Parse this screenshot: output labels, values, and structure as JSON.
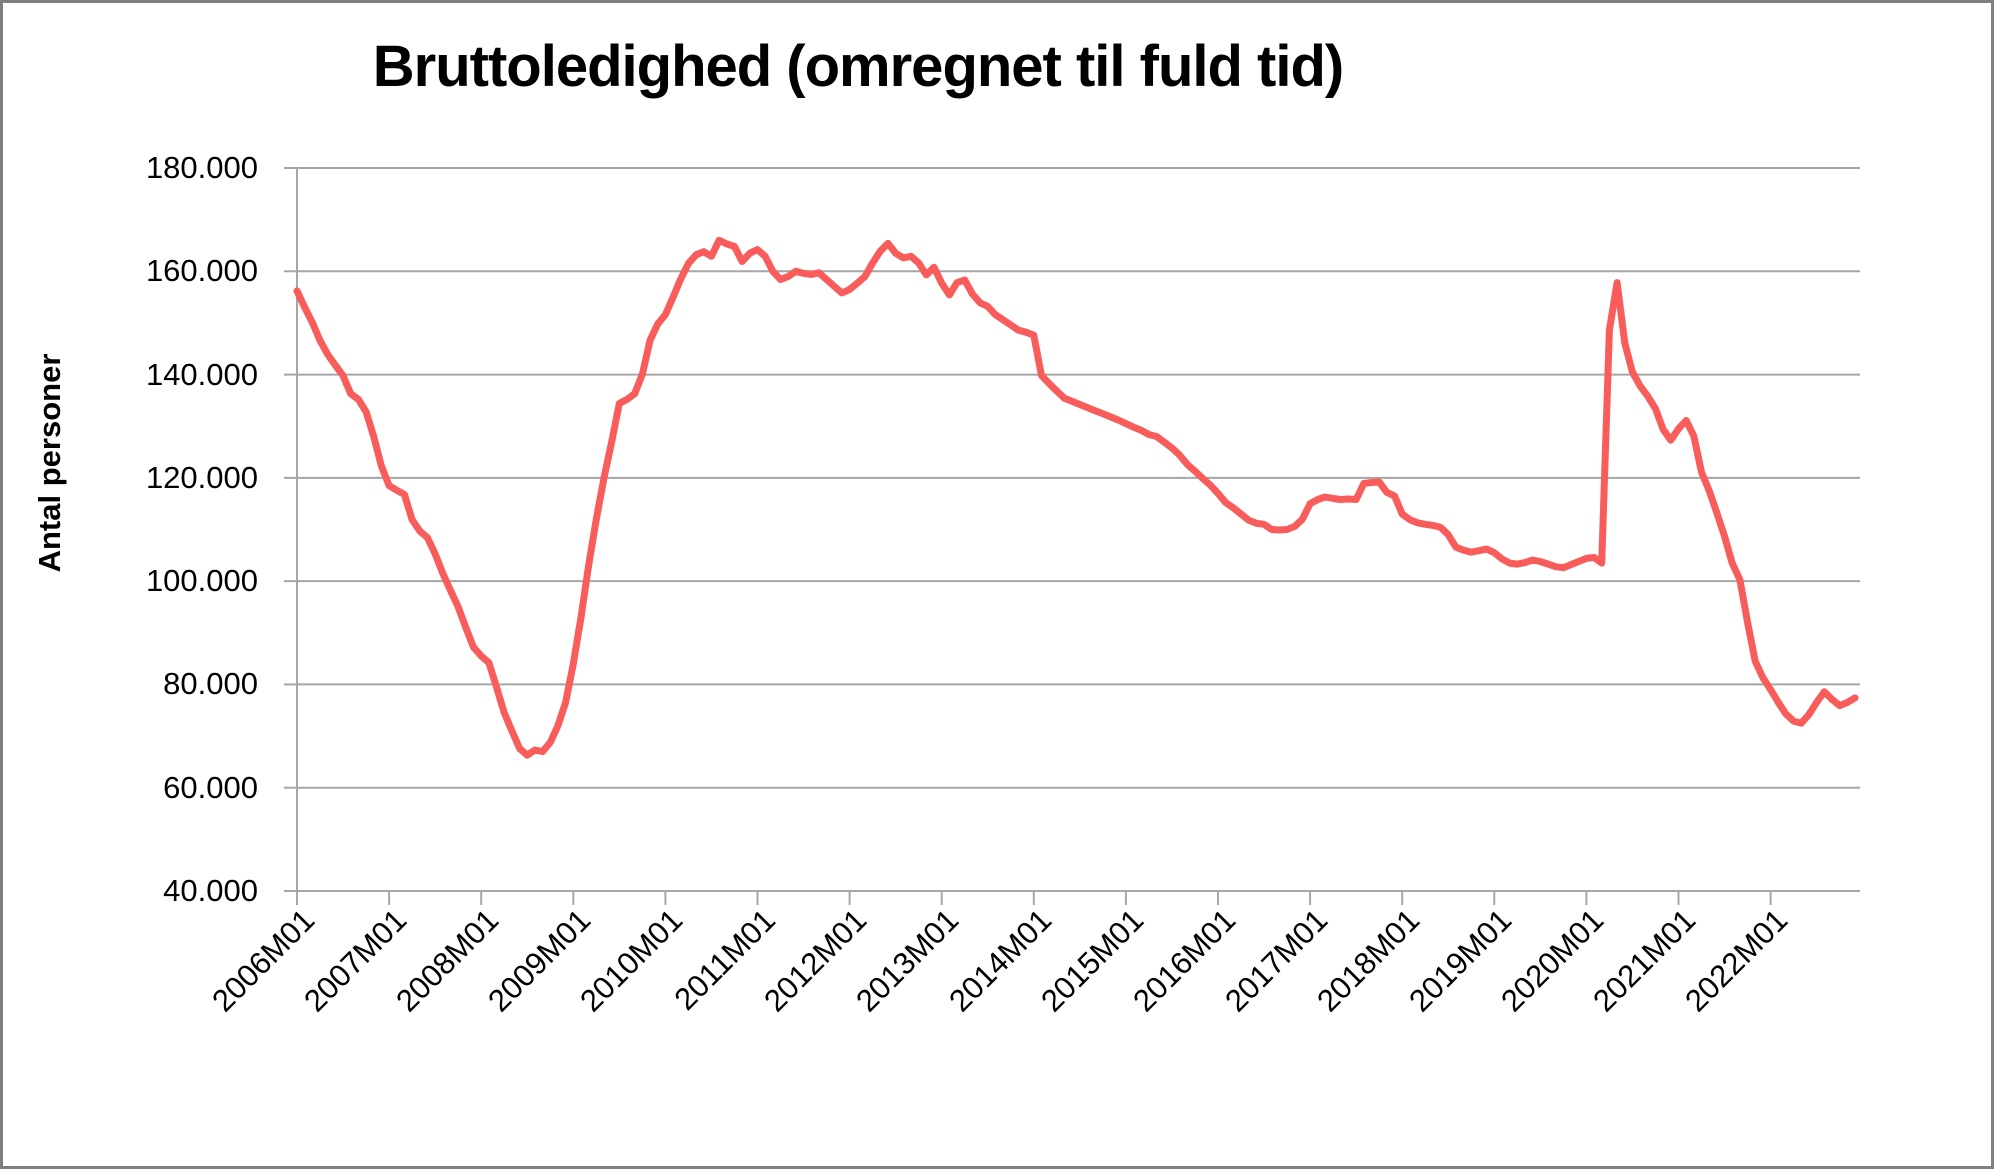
{
  "title": "Bruttoledighed (omregnet til fuld tid)",
  "y_axis": {
    "title": "Antal personer",
    "tick_labels": [
      "180.000",
      "160.000",
      "140.000",
      "120.000",
      "100.000",
      "80.000",
      "60.000",
      "40.000"
    ],
    "min": 40000,
    "max": 180000,
    "step": 20000
  },
  "x_axis": {
    "tick_labels": [
      "2006M01",
      "2007M01",
      "2008M01",
      "2009M01",
      "2010M01",
      "2011M01",
      "2012M01",
      "2013M01",
      "2014M01",
      "2015M01",
      "2016M01",
      "2017M01",
      "2018M01",
      "2019M01",
      "2020M01",
      "2021M01",
      "2022M01"
    ],
    "tick_interval_months": 12
  },
  "colors": {
    "line": "#F95D5B",
    "gridline": "#A6A6A6",
    "axis": "#A6A6A6",
    "text": "#000000",
    "frame_border": "#7F7F7F",
    "background": "#FFFFFF"
  },
  "chart_data": {
    "type": "line",
    "title": "Bruttoledighed (omregnet til fuld tid)",
    "xlabel": "",
    "ylabel": "Antal personer",
    "ylim": [
      40000,
      180000
    ],
    "grid": true,
    "legend": "none",
    "x_start": "2006M01",
    "x_end": "2022M12",
    "frequency": "monthly",
    "x_tick_labels": [
      "2006M01",
      "2007M01",
      "2008M01",
      "2009M01",
      "2010M01",
      "2011M01",
      "2012M01",
      "2013M01",
      "2014M01",
      "2015M01",
      "2016M01",
      "2017M01",
      "2018M01",
      "2019M01",
      "2020M01",
      "2021M01",
      "2022M01"
    ],
    "series": [
      {
        "name": "Bruttoledighed (omregnet til fuld tid)",
        "values": [
          156200,
          153000,
          150100,
          146600,
          143900,
          141800,
          139800,
          136300,
          135200,
          132800,
          128000,
          122300,
          118500,
          117600,
          116800,
          111900,
          109700,
          108400,
          105300,
          101500,
          98200,
          95000,
          91000,
          87200,
          85500,
          84200,
          79500,
          74500,
          71000,
          67600,
          66300,
          67300,
          67000,
          68800,
          72000,
          76500,
          84000,
          93000,
          103000,
          112000,
          120000,
          127000,
          134400,
          135200,
          136300,
          140100,
          146600,
          149800,
          151600,
          155000,
          158500,
          161500,
          163200,
          163800,
          162900,
          166000,
          165300,
          164800,
          161900,
          163500,
          164200,
          162900,
          160000,
          158400,
          159000,
          160000,
          159600,
          159400,
          159700,
          158400,
          157100,
          155800,
          156500,
          157700,
          159000,
          161600,
          163900,
          165400,
          163500,
          162600,
          162900,
          161600,
          159300,
          160800,
          157700,
          155400,
          157800,
          158300,
          155600,
          153900,
          153200,
          151600,
          150600,
          149600,
          148600,
          148200,
          147600,
          139800,
          138300,
          136800,
          135400,
          134800,
          134200,
          133600,
          133000,
          132400,
          131800,
          131200,
          130500,
          129800,
          129200,
          128400,
          128000,
          126900,
          125800,
          124400,
          122600,
          121300,
          119900,
          118600,
          117000,
          115200,
          114200,
          113000,
          111800,
          111200,
          111000,
          110000,
          109900,
          110000,
          110600,
          112000,
          115000,
          115800,
          116300,
          116000,
          115800,
          115900,
          115800,
          118900,
          119100,
          119200,
          117200,
          116500,
          113000,
          111900,
          111300,
          111000,
          110800,
          110400,
          109000,
          106600,
          106000,
          105600,
          105900,
          106200,
          105500,
          104300,
          103500,
          103300,
          103600,
          104100,
          103800,
          103300,
          102800,
          102600,
          103200,
          103800,
          104400,
          104600,
          103500,
          148600,
          157800,
          146100,
          140500,
          137800,
          135800,
          133400,
          129400,
          127300,
          129500,
          131100,
          128100,
          121100,
          117500,
          113200,
          108700,
          103500,
          100300,
          92000,
          84500,
          81300,
          79000,
          76500,
          74300,
          72900,
          72500,
          74200,
          76500,
          78600,
          77100,
          75900,
          76500,
          77400
        ]
      }
    ]
  }
}
